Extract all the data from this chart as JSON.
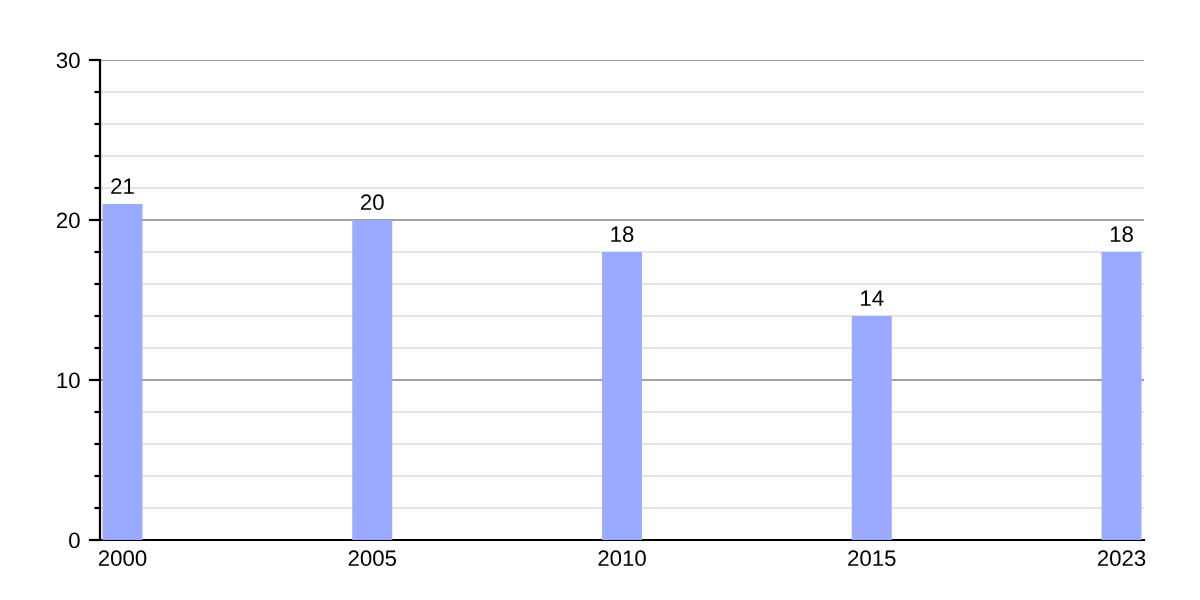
{
  "chart_data": {
    "type": "bar",
    "categories": [
      "2000",
      "2005",
      "2010",
      "2015",
      "2023"
    ],
    "values": [
      21,
      20,
      18,
      14,
      18
    ],
    "color": "#99aaff",
    "data_labels": true,
    "ylim": [
      0,
      30
    ],
    "yticks": [
      0,
      {
        "value": 2,
        "label": null
      },
      {
        "value": 4,
        "label": null
      },
      {
        "value": 6,
        "label": null
      },
      {
        "value": 8,
        "label": null
      },
      10,
      {
        "value": 12,
        "label": null
      },
      {
        "value": 14,
        "label": null
      },
      {
        "value": 16,
        "label": null
      },
      {
        "value": 18,
        "label": null
      },
      20,
      {
        "value": 22,
        "label": null
      },
      {
        "value": 24,
        "label": null
      },
      {
        "value": 26,
        "label": null
      },
      {
        "value": 28,
        "label": null
      },
      30
    ],
    "grid": "y"
  }
}
